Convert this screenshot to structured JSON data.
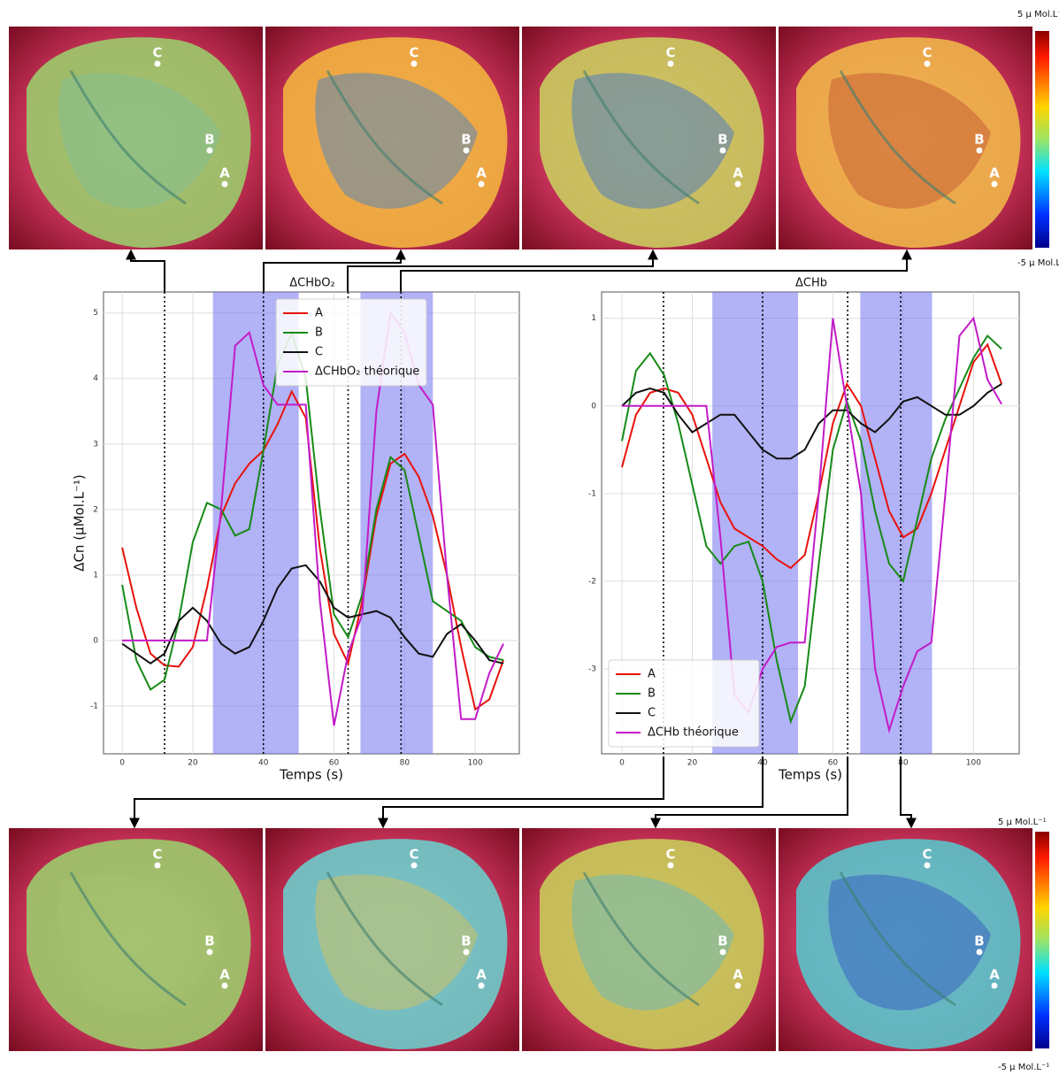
{
  "chart_data": [
    {
      "type": "line",
      "title": "ΔCHbO₂",
      "xlabel": "Temps (s)",
      "ylabel": "ΔCn (µMol.L⁻¹)",
      "x": [
        0,
        4,
        8,
        12,
        16,
        20,
        24,
        28,
        32,
        36,
        40,
        44,
        48,
        52,
        56,
        60,
        64,
        68,
        72,
        76,
        80,
        84,
        88,
        92,
        96,
        100,
        104,
        108
      ],
      "series": [
        {
          "name": "A",
          "color": "#e8120c",
          "values": [
            1.42,
            0.5,
            -0.2,
            -0.38,
            -0.4,
            -0.1,
            0.8,
            1.9,
            2.4,
            2.7,
            2.9,
            3.3,
            3.8,
            3.4,
            1.4,
            0.1,
            -0.35,
            0.6,
            1.9,
            2.7,
            2.85,
            2.5,
            1.9,
            1.0,
            -0.1,
            -1.05,
            -0.9,
            -0.3
          ]
        },
        {
          "name": "B",
          "color": "#178a17",
          "values": [
            0.85,
            -0.3,
            -0.75,
            -0.6,
            0.3,
            1.5,
            2.1,
            2.0,
            1.6,
            1.7,
            2.9,
            4.2,
            4.7,
            4.0,
            2.0,
            0.4,
            0.05,
            0.7,
            2.0,
            2.8,
            2.6,
            1.6,
            0.6,
            0.45,
            0.3,
            -0.1,
            -0.25,
            -0.3
          ]
        },
        {
          "name": "C",
          "color": "#111111",
          "values": [
            -0.05,
            -0.2,
            -0.35,
            -0.2,
            0.3,
            0.5,
            0.3,
            -0.05,
            -0.2,
            -0.1,
            0.3,
            0.8,
            1.1,
            1.15,
            0.9,
            0.5,
            0.35,
            0.4,
            0.45,
            0.35,
            0.05,
            -0.2,
            -0.25,
            0.1,
            0.25,
            0.0,
            -0.3,
            -0.35
          ]
        },
        {
          "name": "ΔCHbO₂ théorique",
          "color": "#c21bc9",
          "values": [
            0,
            0,
            0,
            0,
            0,
            0,
            0,
            2.0,
            4.5,
            4.7,
            3.9,
            3.6,
            3.6,
            3.6,
            0.6,
            -1.3,
            -0.2,
            0.4,
            3.5,
            5.0,
            4.7,
            3.9,
            3.6,
            1.0,
            -1.2,
            -1.2,
            -0.5,
            -0.05
          ]
        }
      ],
      "stimulation_periods": [
        [
          25.7,
          50
        ],
        [
          67.5,
          88
        ]
      ],
      "time_markers": [
        12,
        40,
        64,
        79
      ],
      "xlim": [
        -5.3,
        112.5
      ],
      "ylim": [
        -1.73,
        5.32
      ],
      "xticks": [
        0,
        20,
        40,
        60,
        80,
        100
      ],
      "yticks": [
        -1,
        0,
        1,
        2,
        3,
        4,
        5
      ],
      "grid": true,
      "legend": "upper right"
    },
    {
      "type": "line",
      "title": "ΔCHb",
      "xlabel": "Temps (s)",
      "x": [
        0,
        4,
        8,
        12,
        16,
        20,
        24,
        28,
        32,
        36,
        40,
        44,
        48,
        52,
        56,
        60,
        64,
        68,
        72,
        76,
        80,
        84,
        88,
        92,
        96,
        100,
        104,
        108
      ],
      "series": [
        {
          "name": "A",
          "color": "#e8120c",
          "values": [
            -0.7,
            -0.1,
            0.15,
            0.2,
            0.15,
            -0.1,
            -0.6,
            -1.1,
            -1.4,
            -1.5,
            -1.6,
            -1.75,
            -1.85,
            -1.7,
            -1.0,
            -0.2,
            0.25,
            0.0,
            -0.6,
            -1.2,
            -1.5,
            -1.4,
            -1.0,
            -0.5,
            0.0,
            0.5,
            0.7,
            0.25
          ]
        },
        {
          "name": "B",
          "color": "#178a17",
          "values": [
            -0.4,
            0.4,
            0.6,
            0.35,
            -0.2,
            -0.9,
            -1.6,
            -1.8,
            -1.6,
            -1.55,
            -2.0,
            -2.9,
            -3.6,
            -3.2,
            -1.8,
            -0.5,
            0.05,
            -0.4,
            -1.2,
            -1.8,
            -2.0,
            -1.3,
            -0.6,
            -0.15,
            0.2,
            0.55,
            0.8,
            0.65
          ]
        },
        {
          "name": "C",
          "color": "#111111",
          "values": [
            0,
            0.15,
            0.2,
            0.15,
            -0.1,
            -0.3,
            -0.2,
            -0.1,
            -0.1,
            -0.3,
            -0.5,
            -0.6,
            -0.6,
            -0.5,
            -0.2,
            -0.05,
            -0.05,
            -0.2,
            -0.3,
            -0.15,
            0.05,
            0.1,
            0.0,
            -0.1,
            -0.1,
            0.0,
            0.15,
            0.25
          ]
        },
        {
          "name": "ΔCHb théorique",
          "color": "#c21bc9",
          "values": [
            0,
            0,
            0,
            0,
            0,
            0,
            0,
            -1.5,
            -3.3,
            -3.5,
            -3.0,
            -2.75,
            -2.7,
            -2.7,
            -1.0,
            1.0,
            0.0,
            -1.0,
            -3.0,
            -3.7,
            -3.2,
            -2.8,
            -2.7,
            -1.0,
            0.8,
            1.0,
            0.3,
            0.02
          ]
        }
      ],
      "stimulation_periods": [
        [
          25.7,
          50.1
        ],
        [
          67.8,
          88.2
        ]
      ],
      "time_markers": [
        11.8,
        40,
        64.2,
        79.3
      ],
      "xlim": [
        -5.8,
        113
      ],
      "ylim": [
        -3.97,
        1.3
      ],
      "xticks": [
        0,
        20,
        40,
        60,
        80,
        100
      ],
      "yticks": [
        -3,
        -2,
        -1,
        0,
        1
      ],
      "grid": true,
      "legend": "lower left"
    }
  ],
  "images": {
    "point_labels": [
      "A",
      "B",
      "C"
    ],
    "colorbar": {
      "max_label": "5 µ Mol.L⁻¹",
      "min_label": "-5 µ Mol.L⁻¹"
    }
  }
}
